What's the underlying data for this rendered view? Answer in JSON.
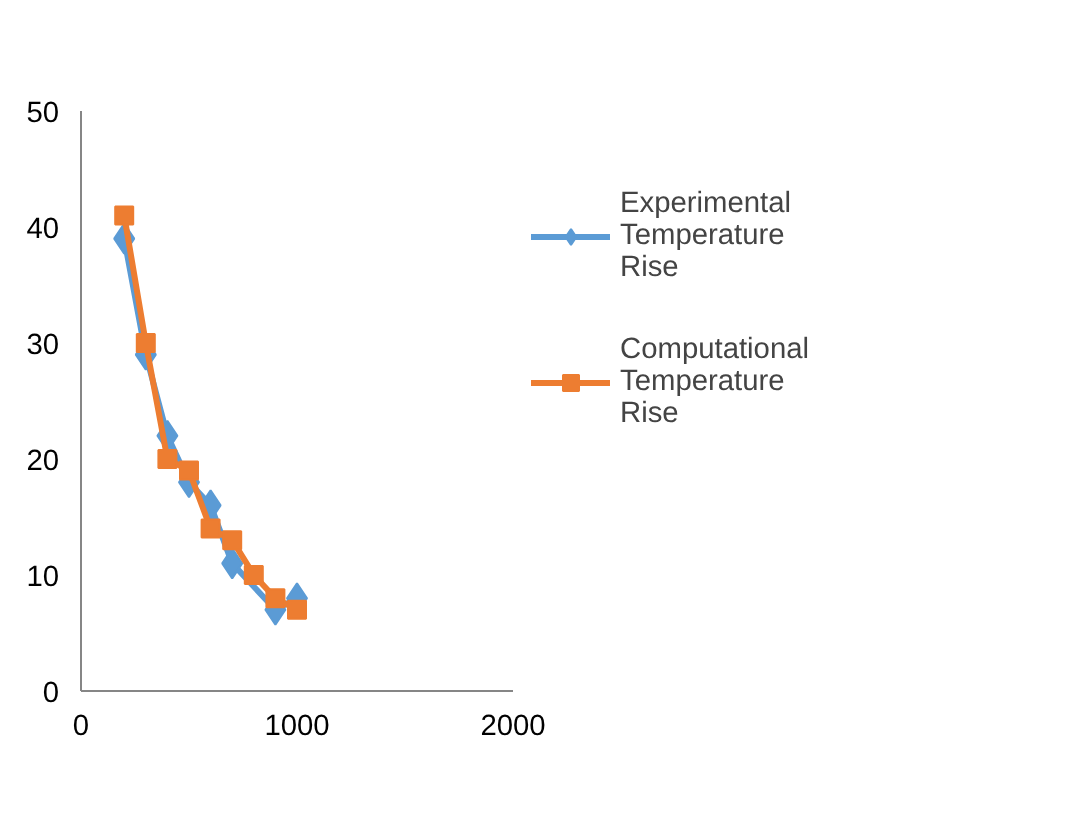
{
  "chart_data": {
    "type": "line",
    "x": [
      200,
      300,
      400,
      500,
      600,
      700,
      800,
      900,
      1000
    ],
    "series": [
      {
        "name": "Experimental Temperature Rise",
        "color": "#5b9bd5",
        "marker": "diamond",
        "values": [
          39,
          29,
          22,
          18,
          16,
          11,
          null,
          7,
          8
        ]
      },
      {
        "name": "Computational Temperature Rise",
        "color": "#ed7d31",
        "marker": "square",
        "values": [
          41,
          30,
          20,
          19,
          14,
          13,
          10,
          8,
          7
        ]
      }
    ],
    "xlim": [
      0,
      2000
    ],
    "xticks": [
      0,
      1000,
      2000
    ],
    "ylim": [
      0,
      50
    ],
    "yticks": [
      0,
      10,
      20,
      30,
      40,
      50
    ],
    "grid": false,
    "legend": "right"
  }
}
